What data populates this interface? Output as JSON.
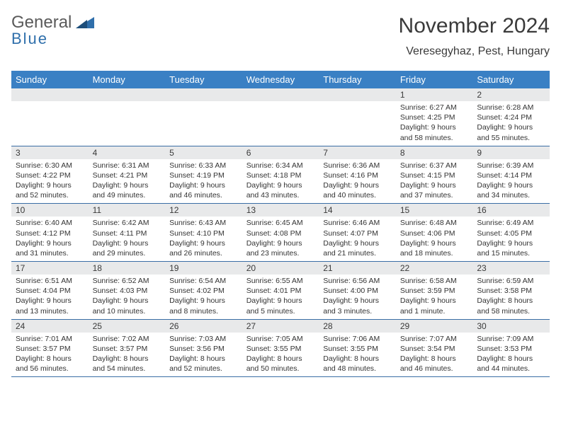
{
  "logo": {
    "general": "General",
    "blue": "Blue"
  },
  "header": {
    "title": "November 2024",
    "location": "Veresegyhaz, Pest, Hungary"
  },
  "style": {
    "header_bg": "#3a80c4",
    "header_fg": "#ffffff",
    "daynum_bg": "#e8e9ea",
    "border_color": "#3a6ea5",
    "title_fontsize": 30,
    "location_fontsize": 16,
    "body_fontsize": 10.5
  },
  "weekdays": [
    "Sunday",
    "Monday",
    "Tuesday",
    "Wednesday",
    "Thursday",
    "Friday",
    "Saturday"
  ],
  "weeks": [
    [
      null,
      null,
      null,
      null,
      null,
      {
        "n": "1",
        "sr": "Sunrise: 6:27 AM",
        "ss": "Sunset: 4:25 PM",
        "dl": "Daylight: 9 hours and 58 minutes."
      },
      {
        "n": "2",
        "sr": "Sunrise: 6:28 AM",
        "ss": "Sunset: 4:24 PM",
        "dl": "Daylight: 9 hours and 55 minutes."
      }
    ],
    [
      {
        "n": "3",
        "sr": "Sunrise: 6:30 AM",
        "ss": "Sunset: 4:22 PM",
        "dl": "Daylight: 9 hours and 52 minutes."
      },
      {
        "n": "4",
        "sr": "Sunrise: 6:31 AM",
        "ss": "Sunset: 4:21 PM",
        "dl": "Daylight: 9 hours and 49 minutes."
      },
      {
        "n": "5",
        "sr": "Sunrise: 6:33 AM",
        "ss": "Sunset: 4:19 PM",
        "dl": "Daylight: 9 hours and 46 minutes."
      },
      {
        "n": "6",
        "sr": "Sunrise: 6:34 AM",
        "ss": "Sunset: 4:18 PM",
        "dl": "Daylight: 9 hours and 43 minutes."
      },
      {
        "n": "7",
        "sr": "Sunrise: 6:36 AM",
        "ss": "Sunset: 4:16 PM",
        "dl": "Daylight: 9 hours and 40 minutes."
      },
      {
        "n": "8",
        "sr": "Sunrise: 6:37 AM",
        "ss": "Sunset: 4:15 PM",
        "dl": "Daylight: 9 hours and 37 minutes."
      },
      {
        "n": "9",
        "sr": "Sunrise: 6:39 AM",
        "ss": "Sunset: 4:14 PM",
        "dl": "Daylight: 9 hours and 34 minutes."
      }
    ],
    [
      {
        "n": "10",
        "sr": "Sunrise: 6:40 AM",
        "ss": "Sunset: 4:12 PM",
        "dl": "Daylight: 9 hours and 31 minutes."
      },
      {
        "n": "11",
        "sr": "Sunrise: 6:42 AM",
        "ss": "Sunset: 4:11 PM",
        "dl": "Daylight: 9 hours and 29 minutes."
      },
      {
        "n": "12",
        "sr": "Sunrise: 6:43 AM",
        "ss": "Sunset: 4:10 PM",
        "dl": "Daylight: 9 hours and 26 minutes."
      },
      {
        "n": "13",
        "sr": "Sunrise: 6:45 AM",
        "ss": "Sunset: 4:08 PM",
        "dl": "Daylight: 9 hours and 23 minutes."
      },
      {
        "n": "14",
        "sr": "Sunrise: 6:46 AM",
        "ss": "Sunset: 4:07 PM",
        "dl": "Daylight: 9 hours and 21 minutes."
      },
      {
        "n": "15",
        "sr": "Sunrise: 6:48 AM",
        "ss": "Sunset: 4:06 PM",
        "dl": "Daylight: 9 hours and 18 minutes."
      },
      {
        "n": "16",
        "sr": "Sunrise: 6:49 AM",
        "ss": "Sunset: 4:05 PM",
        "dl": "Daylight: 9 hours and 15 minutes."
      }
    ],
    [
      {
        "n": "17",
        "sr": "Sunrise: 6:51 AM",
        "ss": "Sunset: 4:04 PM",
        "dl": "Daylight: 9 hours and 13 minutes."
      },
      {
        "n": "18",
        "sr": "Sunrise: 6:52 AM",
        "ss": "Sunset: 4:03 PM",
        "dl": "Daylight: 9 hours and 10 minutes."
      },
      {
        "n": "19",
        "sr": "Sunrise: 6:54 AM",
        "ss": "Sunset: 4:02 PM",
        "dl": "Daylight: 9 hours and 8 minutes."
      },
      {
        "n": "20",
        "sr": "Sunrise: 6:55 AM",
        "ss": "Sunset: 4:01 PM",
        "dl": "Daylight: 9 hours and 5 minutes."
      },
      {
        "n": "21",
        "sr": "Sunrise: 6:56 AM",
        "ss": "Sunset: 4:00 PM",
        "dl": "Daylight: 9 hours and 3 minutes."
      },
      {
        "n": "22",
        "sr": "Sunrise: 6:58 AM",
        "ss": "Sunset: 3:59 PM",
        "dl": "Daylight: 9 hours and 1 minute."
      },
      {
        "n": "23",
        "sr": "Sunrise: 6:59 AM",
        "ss": "Sunset: 3:58 PM",
        "dl": "Daylight: 8 hours and 58 minutes."
      }
    ],
    [
      {
        "n": "24",
        "sr": "Sunrise: 7:01 AM",
        "ss": "Sunset: 3:57 PM",
        "dl": "Daylight: 8 hours and 56 minutes."
      },
      {
        "n": "25",
        "sr": "Sunrise: 7:02 AM",
        "ss": "Sunset: 3:57 PM",
        "dl": "Daylight: 8 hours and 54 minutes."
      },
      {
        "n": "26",
        "sr": "Sunrise: 7:03 AM",
        "ss": "Sunset: 3:56 PM",
        "dl": "Daylight: 8 hours and 52 minutes."
      },
      {
        "n": "27",
        "sr": "Sunrise: 7:05 AM",
        "ss": "Sunset: 3:55 PM",
        "dl": "Daylight: 8 hours and 50 minutes."
      },
      {
        "n": "28",
        "sr": "Sunrise: 7:06 AM",
        "ss": "Sunset: 3:55 PM",
        "dl": "Daylight: 8 hours and 48 minutes."
      },
      {
        "n": "29",
        "sr": "Sunrise: 7:07 AM",
        "ss": "Sunset: 3:54 PM",
        "dl": "Daylight: 8 hours and 46 minutes."
      },
      {
        "n": "30",
        "sr": "Sunrise: 7:09 AM",
        "ss": "Sunset: 3:53 PM",
        "dl": "Daylight: 8 hours and 44 minutes."
      }
    ]
  ]
}
